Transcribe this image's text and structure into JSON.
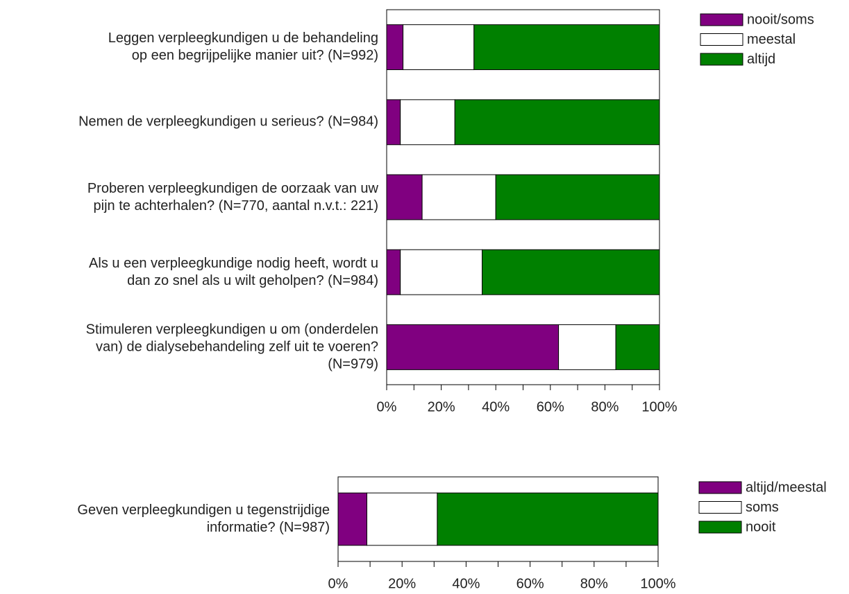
{
  "chart_data": [
    {
      "type": "bar",
      "orientation": "horizontal",
      "stacked": true,
      "categories": [
        "Leggen verpleegkundigen u de behandeling\nop een begrijpelijke manier uit? (N=992)",
        "Nemen de verpleegkundigen u serieus? (N=984)",
        "Proberen verpleegkundigen de oorzaak van uw\npijn te achterhalen? (N=770, aantal n.v.t.: 221)",
        "Als u een verpleegkundige nodig heeft, wordt u\ndan zo snel als u wilt geholpen? (N=984)",
        "Stimuleren verpleegkundigen u om (onderdelen\nvan) de dialysebehandeling zelf uit te voeren?\n(N=979)"
      ],
      "series": [
        {
          "name": "nooit/soms",
          "color": "#800080",
          "values": [
            6,
            5,
            13,
            5,
            63
          ]
        },
        {
          "name": "meestal",
          "color": "#ffffff",
          "values": [
            26,
            20,
            27,
            30,
            21
          ]
        },
        {
          "name": "altijd",
          "color": "#008000",
          "values": [
            68,
            75,
            60,
            65,
            16
          ]
        }
      ],
      "xlim": [
        0,
        100
      ],
      "xticks": [
        {
          "value": 0,
          "label": "0%"
        },
        {
          "value": 20,
          "label": "20%"
        },
        {
          "value": 40,
          "label": "40%"
        },
        {
          "value": 60,
          "label": "60%"
        },
        {
          "value": 80,
          "label": "80%"
        },
        {
          "value": 100,
          "label": "100%"
        }
      ],
      "minor_xticks": [
        10,
        30,
        50,
        70,
        90
      ],
      "legend": "right"
    },
    {
      "type": "bar",
      "orientation": "horizontal",
      "stacked": true,
      "categories": [
        "Geven verpleegkundigen u tegenstrijdige\ninformatie? (N=987)"
      ],
      "series": [
        {
          "name": "altijd/meestal",
          "color": "#800080",
          "values": [
            9
          ]
        },
        {
          "name": "soms",
          "color": "#ffffff",
          "values": [
            22
          ]
        },
        {
          "name": "nooit",
          "color": "#008000",
          "values": [
            69
          ]
        }
      ],
      "xlim": [
        0,
        100
      ],
      "xticks": [
        {
          "value": 0,
          "label": "0%"
        },
        {
          "value": 20,
          "label": "20%"
        },
        {
          "value": 40,
          "label": "40%"
        },
        {
          "value": 60,
          "label": "60%"
        },
        {
          "value": 80,
          "label": "80%"
        },
        {
          "value": 100,
          "label": "100%"
        }
      ],
      "minor_xticks": [
        10,
        30,
        50,
        70,
        90
      ],
      "legend": "right"
    }
  ]
}
